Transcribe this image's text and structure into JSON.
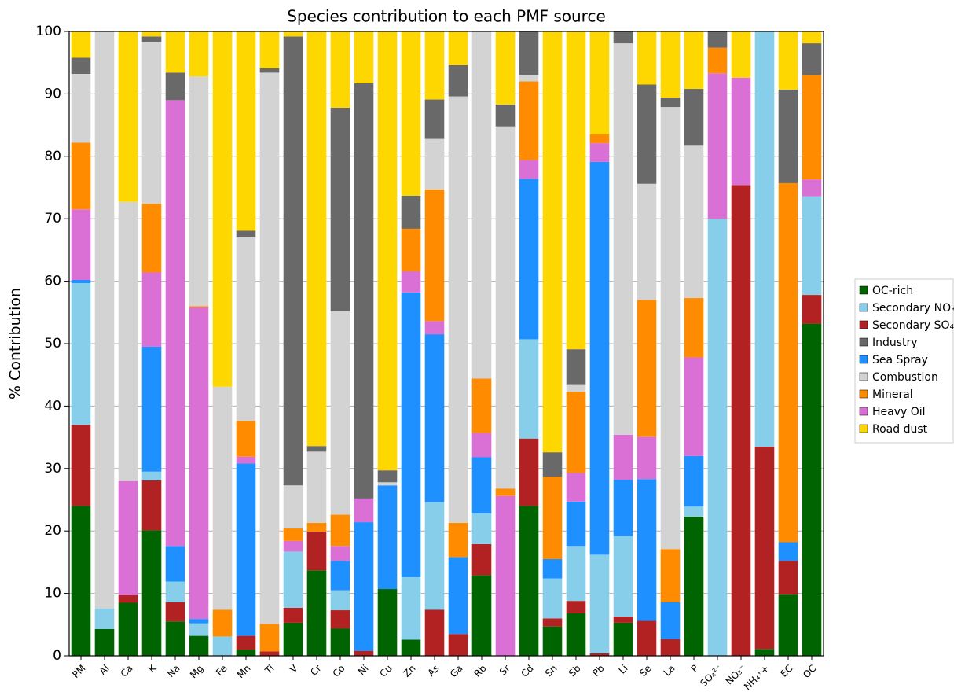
{
  "chart_data": {
    "type": "stacked_bar",
    "title": "Species contribution to each PMF source",
    "y_label": "% Contribution",
    "categories": [
      "PM",
      "Al",
      "Ca",
      "K",
      "Na",
      "Mg",
      "Fe",
      "Mn",
      "Ti",
      "V",
      "Cr",
      "Co",
      "Ni",
      "Cu",
      "Zn",
      "As",
      "Ga",
      "Rb",
      "Sr",
      "Cd",
      "Sn",
      "Sb",
      "Pb",
      "Li",
      "Se",
      "La",
      "P",
      "SO₄²⁻",
      "NO₃⁻",
      "NH₄⁺+",
      "EC",
      "OC"
    ],
    "series": [
      {
        "name": "OC-rich",
        "color": "#006400",
        "values": [
          24,
          4.3,
          8.5,
          20.1,
          5.5,
          3.2,
          0,
          1,
          0,
          5.3,
          13.7,
          4.4,
          0,
          10.7,
          2.6,
          0,
          0,
          12.9,
          0,
          24,
          4.7,
          6.8,
          0,
          5.3,
          0,
          0,
          22.3,
          0,
          0,
          1.1,
          9.8,
          53.2
        ]
      },
      {
        "name": "Secondary NO₃",
        "color": "#87ceeb",
        "values": [
          22.7,
          3.3,
          0,
          1.4,
          3.3,
          2,
          3.1,
          0,
          0,
          9,
          0,
          3.2,
          0,
          0,
          10,
          17.2,
          0,
          4.9,
          0,
          15.9,
          6.4,
          8.8,
          15.8,
          12.9,
          0,
          0,
          1.6,
          70,
          0,
          66.5,
          0,
          15.8
        ]
      },
      {
        "name": "Secondary SO₄",
        "color": "#b22222",
        "values": [
          13,
          0,
          1.2,
          8,
          3.1,
          0,
          0,
          2.2,
          0.7,
          2.4,
          6.2,
          2.9,
          0.8,
          0,
          0,
          7.4,
          3.5,
          5,
          0,
          10.8,
          1.3,
          2,
          0.4,
          1,
          5.6,
          2.7,
          0,
          0,
          75.4,
          32.4,
          5.4,
          4.6
        ]
      },
      {
        "name": "Industry",
        "color": "#696969",
        "values": [
          2.6,
          0,
          0,
          0.9,
          4.4,
          0,
          0,
          1,
          0.7,
          71.9,
          0.9,
          32.6,
          66.5,
          1.9,
          5.3,
          6.3,
          5,
          0,
          3.5,
          7,
          3.9,
          5.6,
          0,
          1.9,
          15.9,
          1.5,
          9.1,
          2.6,
          0,
          0,
          15,
          5.1
        ]
      },
      {
        "name": "Sea Spray",
        "color": "#1e90ff",
        "values": [
          0.5,
          0,
          0,
          20,
          5.7,
          0.7,
          0,
          27.6,
          0,
          0,
          0,
          4.7,
          20.6,
          16.6,
          45.6,
          26.9,
          12.3,
          9,
          0,
          25.7,
          3.1,
          7.1,
          62.9,
          9,
          22.7,
          5.9,
          8.1,
          0,
          0,
          0,
          3,
          0
        ]
      },
      {
        "name": "Combustion",
        "color": "#d3d3d3",
        "values": [
          11,
          92.4,
          44.7,
          25.9,
          0,
          36.8,
          35.7,
          29.5,
          88.3,
          6.9,
          11.4,
          32.6,
          0,
          0.5,
          0,
          8.1,
          68.3,
          55.6,
          58,
          1,
          0,
          1.2,
          0,
          62.7,
          18.6,
          70.8,
          24.4,
          0,
          0,
          0,
          0,
          0
        ]
      },
      {
        "name": "Mineral",
        "color": "#ff8c00",
        "values": [
          10.7,
          0,
          0,
          11,
          0,
          0.2,
          4.3,
          5.7,
          4.4,
          2,
          1.4,
          5,
          0,
          0,
          6.8,
          21.1,
          5.5,
          8.7,
          1.2,
          12.6,
          13.2,
          13,
          1.4,
          0,
          21.9,
          8.5,
          9.5,
          4.1,
          0,
          0,
          57.5,
          16.7
        ]
      },
      {
        "name": "Heavy Oil",
        "color": "#da70d6",
        "values": [
          11.3,
          0,
          18.3,
          11.9,
          71.4,
          49.9,
          0,
          1.1,
          0,
          1.7,
          0,
          2.4,
          3.8,
          0,
          3.4,
          2.1,
          0,
          3.9,
          25.6,
          3,
          0,
          4.6,
          3,
          7.2,
          6.8,
          0,
          15.8,
          23.3,
          17.2,
          0,
          0,
          2.7
        ]
      },
      {
        "name": "Road dust",
        "color": "#ffd700",
        "values": [
          4.2,
          0,
          27.3,
          0.8,
          6.6,
          7.2,
          56.9,
          31.9,
          5.9,
          0.8,
          66.4,
          12.2,
          8.3,
          70.3,
          26.3,
          10.9,
          5.4,
          0,
          11.7,
          0,
          67.4,
          50.9,
          16.5,
          0,
          8.5,
          10.6,
          9.2,
          0,
          7.4,
          0,
          9.3,
          1.9
        ]
      }
    ],
    "ylim": [
      0,
      100
    ],
    "yticks": [
      0,
      10,
      20,
      30,
      40,
      50,
      60,
      70,
      80,
      90,
      100
    ],
    "grid": true,
    "legend": "right"
  }
}
